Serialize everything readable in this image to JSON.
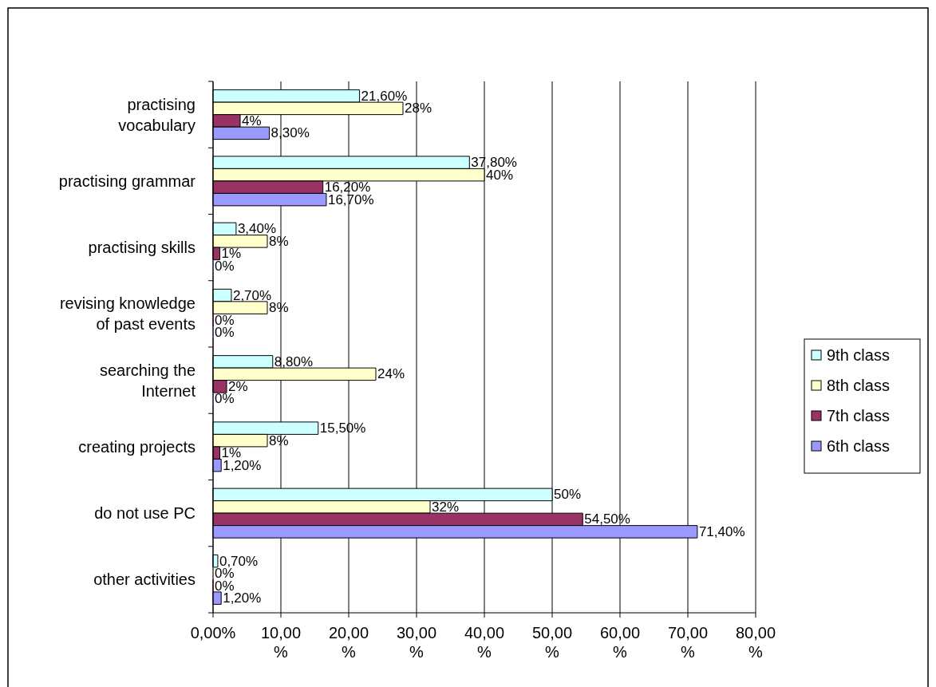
{
  "chart_data": {
    "type": "bar",
    "orientation": "horizontal",
    "categories": [
      "practising vocabulary",
      "practising grammar",
      "practising skills",
      "revising knowledge of past events",
      "searching the Internet",
      "creating projects",
      "do not use PC",
      "other activities"
    ],
    "series": [
      {
        "name": "9th class",
        "color": "#ccffff",
        "values": [
          21.6,
          37.8,
          3.4,
          2.7,
          8.8,
          15.5,
          50,
          0.7
        ],
        "value_labels": [
          "21,60%",
          "37,80%",
          "3,40%",
          "2,70%",
          "8,80%",
          "15,50%",
          "50%",
          "0,70%"
        ]
      },
      {
        "name": "8th class",
        "color": "#ffffcc",
        "values": [
          28,
          40,
          8,
          8,
          24,
          8,
          32,
          0
        ],
        "value_labels": [
          "28%",
          "40%",
          "8%",
          "8%",
          "24%",
          "8%",
          "32%",
          "0%"
        ]
      },
      {
        "name": "7th class",
        "color": "#993366",
        "values": [
          4,
          16.2,
          1,
          0,
          2,
          1,
          54.5,
          0
        ],
        "value_labels": [
          "4%",
          "16,20%",
          "1%",
          "0%",
          "2%",
          "1%",
          "54,50%",
          "0%"
        ]
      },
      {
        "name": "6th class",
        "color": "#9999ff",
        "values": [
          8.3,
          16.7,
          0,
          0,
          0,
          1.2,
          71.4,
          1.2
        ],
        "value_labels": [
          "8,30%",
          "16,70%",
          "0%",
          "0%",
          "0%",
          "1,20%",
          "71,40%",
          "1,20%"
        ]
      }
    ],
    "xlim": [
      0,
      80
    ],
    "xticks": [
      {
        "value": 0,
        "label": "0,00%"
      },
      {
        "value": 10,
        "label": "10,00 %"
      },
      {
        "value": 20,
        "label": "20,00 %"
      },
      {
        "value": 30,
        "label": "30,00 %"
      },
      {
        "value": 40,
        "label": "40,00 %"
      },
      {
        "value": 50,
        "label": "50,00 %"
      },
      {
        "value": 60,
        "label": "60,00 %"
      },
      {
        "value": 70,
        "label": "70,00 %"
      },
      {
        "value": 80,
        "label": "80,00 %"
      }
    ],
    "grid": "x",
    "legend": "right"
  }
}
